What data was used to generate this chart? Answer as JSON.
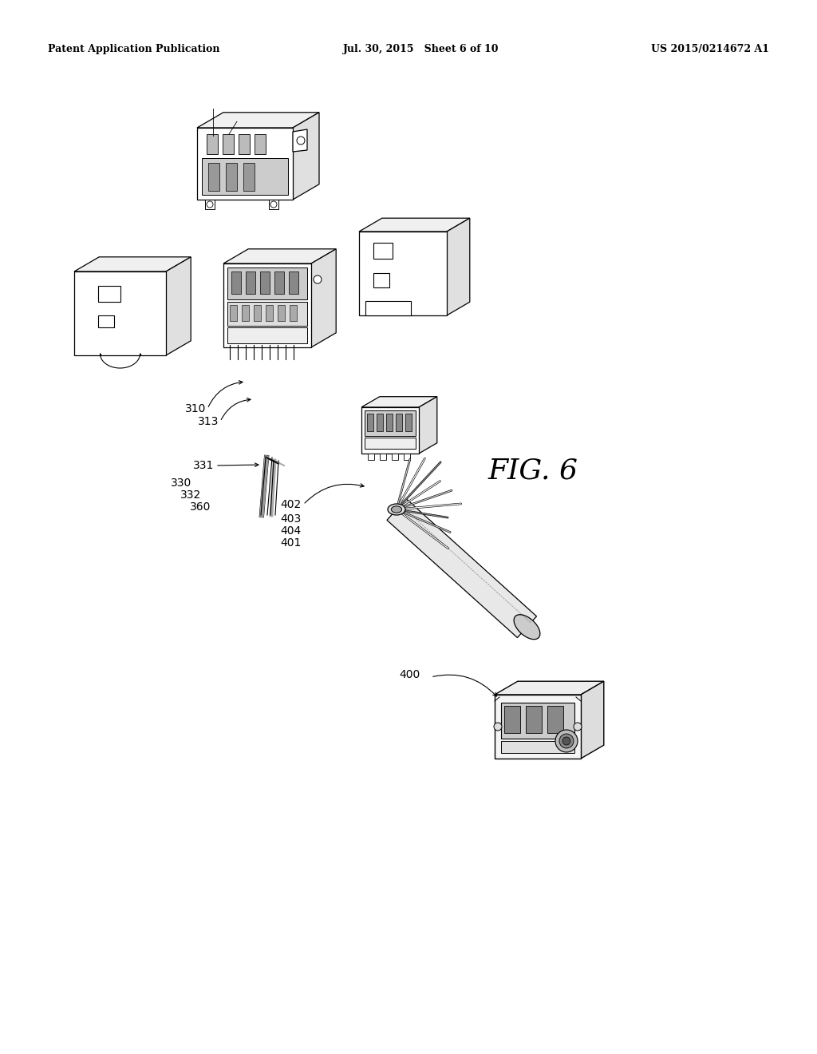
{
  "background_color": "#ffffff",
  "header_left": "Patent Application Publication",
  "header_center": "Jul. 30, 2015   Sheet 6 of 10",
  "header_right": "US 2015/0214672 A1",
  "fig_label": "FIG. 6",
  "lw": 0.8,
  "lc": "black"
}
